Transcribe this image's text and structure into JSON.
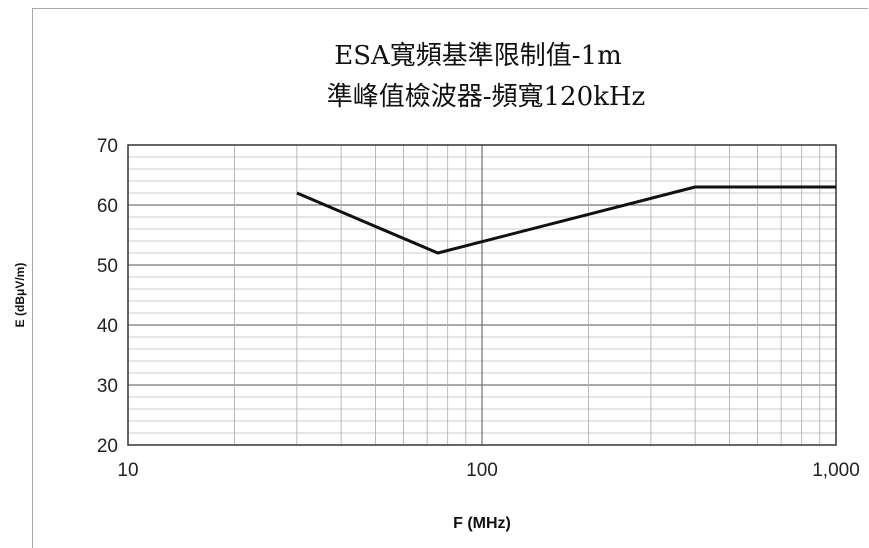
{
  "chart_data": {
    "type": "line",
    "title": "ESA寬頻基準限制值-1m",
    "subtitle": "準峰值檢波器-頻寬120kHz",
    "xlabel": "F (MHz)",
    "ylabel": "E (dBμV/m)",
    "x_scale": "log",
    "xlim": [
      10,
      1000
    ],
    "ylim": [
      20,
      70
    ],
    "x_ticks": [
      10,
      100,
      1000
    ],
    "x_tick_labels": [
      "10",
      "100",
      "1,000"
    ],
    "y_ticks": [
      20,
      30,
      40,
      50,
      60,
      70
    ],
    "y_tick_labels": [
      "20",
      "30",
      "40",
      "50",
      "60",
      "70"
    ],
    "grid": true,
    "series": [
      {
        "color": "#111111",
        "points": [
          {
            "x": 30,
            "y": 62
          },
          {
            "x": 75,
            "y": 52
          },
          {
            "x": 400,
            "y": 63
          },
          {
            "x": 1000,
            "y": 63
          }
        ]
      }
    ]
  }
}
